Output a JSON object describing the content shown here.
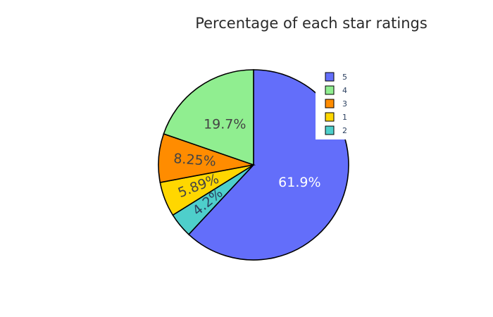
{
  "chart_data": {
    "type": "pie",
    "title": "Percentage of each star ratings",
    "slices": [
      {
        "label": "5",
        "value": 61.9,
        "text": "61.9%",
        "color": "#636efa",
        "text_color": "#ffffff"
      },
      {
        "label": "2",
        "value": 4.2,
        "text": "4.2%",
        "color": "#4ecfcb",
        "text_color": "#2a3f5f"
      },
      {
        "label": "1",
        "value": 5.89,
        "text": "5.89%",
        "color": "#ffd700",
        "text_color": "#444444"
      },
      {
        "label": "3",
        "value": 8.25,
        "text": "8.25%",
        "color": "#ff8c00",
        "text_color": "#444444"
      },
      {
        "label": "4",
        "value": 19.7,
        "text": "19.7%",
        "color": "#90ee90",
        "text_color": "#444444"
      }
    ],
    "legend": {
      "position": "top-right",
      "order": [
        "5",
        "4",
        "3",
        "1",
        "2"
      ]
    },
    "start_angle_deg": 90,
    "direction": "clockwise"
  }
}
